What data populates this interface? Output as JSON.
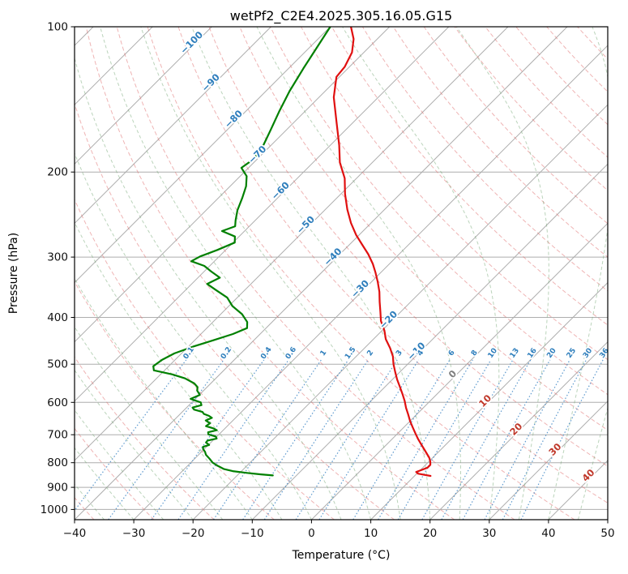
{
  "title": "wetPf2_C2E4.2025.305.16.05.G15",
  "axes": {
    "x_label": "Temperature (°C)",
    "y_label": "Pressure (hPa)",
    "x_ticks": [
      -40,
      -30,
      -20,
      -10,
      0,
      10,
      20,
      30,
      40,
      50
    ],
    "y_ticks": [
      100,
      200,
      300,
      400,
      500,
      600,
      700,
      800,
      900,
      1000
    ]
  },
  "chart_data": {
    "type": "line",
    "chart_kind": "skew_t_log_p",
    "title": "wetPf2_C2E4.2025.305.16.05.G15",
    "xlabel": "Temperature (°C)",
    "ylabel": "Pressure (hPa)",
    "xlim": [
      -40,
      50
    ],
    "pressure_lim": [
      100,
      1050
    ],
    "skew_deg": 45,
    "grid": true,
    "isobars": [
      100,
      200,
      300,
      400,
      500,
      600,
      700,
      800,
      900,
      1000
    ],
    "isotherms": {
      "start": -150,
      "end": 50,
      "step": 10
    },
    "isotherm_labels": [
      {
        "t": -100,
        "p": 109
      },
      {
        "t": -90,
        "p": 132
      },
      {
        "t": -80,
        "p": 157
      },
      {
        "t": -70,
        "p": 186
      },
      {
        "t": -60,
        "p": 221
      },
      {
        "t": -50,
        "p": 260
      },
      {
        "t": -40,
        "p": 303
      },
      {
        "t": -30,
        "p": 353
      },
      {
        "t": -20,
        "p": 409
      },
      {
        "t": -10,
        "p": 475
      },
      {
        "t": 0,
        "p": 530
      },
      {
        "t": 10,
        "p": 602
      },
      {
        "t": 20,
        "p": 689
      },
      {
        "t": 30,
        "p": 759
      },
      {
        "t": 40,
        "p": 859
      }
    ],
    "dry_adiabats_theta_c": [
      -40,
      -30,
      -20,
      -10,
      0,
      10,
      20,
      30,
      40,
      50,
      60,
      70,
      80,
      90,
      100,
      110,
      120,
      130,
      140,
      150,
      160,
      170,
      180,
      190,
      200,
      210,
      220,
      230,
      240,
      250,
      260
    ],
    "moist_adiabats_t0_c": [
      -60,
      -50,
      -40,
      -35,
      -30,
      -25,
      -20,
      -15,
      -10,
      -5,
      0,
      5,
      10,
      15,
      20,
      25,
      30,
      35,
      40,
      45,
      50
    ],
    "mixing_ratios": {
      "values_g_kg": [
        0.1,
        0.2,
        0.4,
        0.6,
        1,
        1.5,
        2,
        3,
        4,
        6,
        8,
        10,
        13,
        16,
        20,
        25,
        30,
        36
      ],
      "label_pressure": 477,
      "top_pressure": 490
    },
    "series": [
      {
        "name": "temperature",
        "color": "#e01010",
        "points": [
          [
            100,
            -76.5
          ],
          [
            106,
            -74.0
          ],
          [
            113,
            -72.0
          ],
          [
            121,
            -70.8
          ],
          [
            127,
            -70.5
          ],
          [
            140,
            -67.5
          ],
          [
            157,
            -63.0
          ],
          [
            176,
            -58.5
          ],
          [
            191,
            -55.5
          ],
          [
            206,
            -52.0
          ],
          [
            222,
            -49.3
          ],
          [
            239,
            -46.3
          ],
          [
            255,
            -43.4
          ],
          [
            270,
            -40.5
          ],
          [
            283,
            -37.8
          ],
          [
            296,
            -35.2
          ],
          [
            310,
            -32.8
          ],
          [
            323,
            -30.9
          ],
          [
            338,
            -28.9
          ],
          [
            354,
            -27.0
          ],
          [
            371,
            -25.3
          ],
          [
            389,
            -23.5
          ],
          [
            407,
            -21.8
          ],
          [
            426,
            -19.6
          ],
          [
            444,
            -17.9
          ],
          [
            463,
            -15.7
          ],
          [
            482,
            -13.8
          ],
          [
            500,
            -12.4
          ],
          [
            519,
            -10.8
          ],
          [
            538,
            -9.2
          ],
          [
            557,
            -7.5
          ],
          [
            576,
            -5.9
          ],
          [
            596,
            -4.3
          ],
          [
            616,
            -2.9
          ],
          [
            636,
            -1.4
          ],
          [
            656,
            0.0
          ],
          [
            676,
            1.5
          ],
          [
            696,
            3.0
          ],
          [
            715,
            4.4
          ],
          [
            733,
            5.8
          ],
          [
            750,
            7.1
          ],
          [
            766,
            8.3
          ],
          [
            781,
            9.4
          ],
          [
            795,
            10.2
          ],
          [
            808,
            10.8
          ],
          [
            819,
            10.8
          ],
          [
            828,
            10.2
          ],
          [
            836,
            9.6
          ],
          [
            843,
            10.2
          ],
          [
            848,
            11.6
          ],
          [
            852,
            12.7
          ]
        ]
      },
      {
        "name": "dewpoint",
        "color": "#008000",
        "points": [
          [
            100,
            -80.0
          ],
          [
            110,
            -78.8
          ],
          [
            122,
            -77.5
          ],
          [
            136,
            -76.0
          ],
          [
            150,
            -74.3
          ],
          [
            164,
            -72.6
          ],
          [
            177,
            -71.2
          ],
          [
            188,
            -70.6
          ],
          [
            196,
            -71.2
          ],
          [
            204,
            -68.9
          ],
          [
            214,
            -67.3
          ],
          [
            226,
            -66.0
          ],
          [
            240,
            -64.7
          ],
          [
            252,
            -63.3
          ],
          [
            259,
            -62.4
          ],
          [
            265,
            -63.8
          ],
          [
            272,
            -60.7
          ],
          [
            280,
            -59.7
          ],
          [
            290,
            -61.4
          ],
          [
            299,
            -63.2
          ],
          [
            306,
            -63.9
          ],
          [
            313,
            -60.9
          ],
          [
            321,
            -58.9
          ],
          [
            331,
            -56.3
          ],
          [
            341,
            -57.4
          ],
          [
            351,
            -54.9
          ],
          [
            364,
            -51.7
          ],
          [
            379,
            -49.4
          ],
          [
            394,
            -46.4
          ],
          [
            409,
            -44.2
          ],
          [
            421,
            -43.2
          ],
          [
            433,
            -44.6
          ],
          [
            446,
            -46.8
          ],
          [
            460,
            -49.2
          ],
          [
            475,
            -51.2
          ],
          [
            490,
            -52.2
          ],
          [
            505,
            -52.6
          ],
          [
            515,
            -51.8
          ],
          [
            525,
            -48.0
          ],
          [
            535,
            -45.2
          ],
          [
            548,
            -42.8
          ],
          [
            558,
            -41.6
          ],
          [
            567,
            -41.1
          ],
          [
            579,
            -39.9
          ],
          [
            590,
            -40.8
          ],
          [
            600,
            -38.5
          ],
          [
            608,
            -37.9
          ],
          [
            615,
            -39.0
          ],
          [
            621,
            -38.4
          ],
          [
            628,
            -36.6
          ],
          [
            634,
            -36.0
          ],
          [
            640,
            -34.8
          ],
          [
            646,
            -34.0
          ],
          [
            654,
            -34.6
          ],
          [
            663,
            -33.4
          ],
          [
            672,
            -33.6
          ],
          [
            679,
            -32.0
          ],
          [
            685,
            -31.1
          ],
          [
            692,
            -32.2
          ],
          [
            699,
            -31.8
          ],
          [
            706,
            -30.2
          ],
          [
            713,
            -29.7
          ],
          [
            720,
            -30.9
          ],
          [
            727,
            -30.8
          ],
          [
            735,
            -29.9
          ],
          [
            742,
            -30.6
          ],
          [
            750,
            -30.2
          ],
          [
            760,
            -29.4
          ],
          [
            770,
            -28.8
          ],
          [
            785,
            -27.5
          ],
          [
            800,
            -26.3
          ],
          [
            813,
            -24.8
          ],
          [
            825,
            -23.3
          ],
          [
            833,
            -21.5
          ],
          [
            840,
            -18.8
          ],
          [
            846,
            -16.2
          ],
          [
            850,
            -14.0
          ]
        ]
      }
    ],
    "colors": {
      "grid": "#adadad",
      "dry_adiabat": "#e06a6a",
      "moist_adiabat": "#77aa77",
      "mixing_ratio": "#4b8ec9",
      "cold_label": "#2e7ebc",
      "warm_label": "#c0392b",
      "zero_label": "#7f7f7f",
      "mixing_ratio_label": "#2e7ebc",
      "frame": "#000000"
    }
  }
}
